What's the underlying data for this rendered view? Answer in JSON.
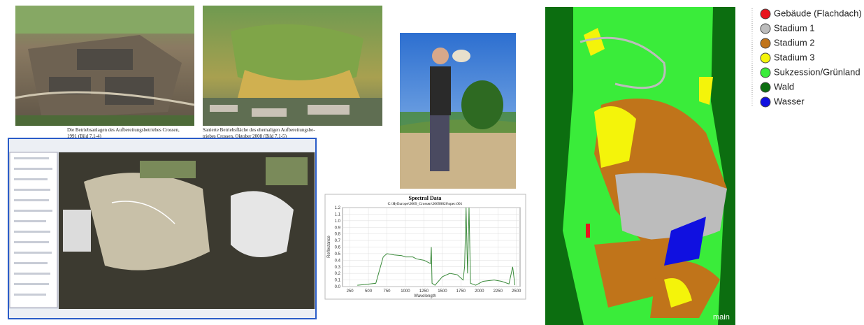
{
  "captions": [
    [
      "Die Betriebsanlagen des Aufbereitungsbetriebes Crossen,",
      "1991 (Bild 7.1-4)"
    ],
    [
      "Sanierte Betriebsfläche des ehemaligen Aufbereitungsbe-",
      "triebes Crossen, Oktober 2008 (Bild 7.1-5)"
    ]
  ],
  "chart_data": {
    "type": "line",
    "title": "Spectral Data",
    "subtitle": "C:\\HyEurope\\2009_Crossen\\20090820\\spec.001",
    "x_label": "Wavelength",
    "y_label": "Reflectance",
    "color": "#3a8a3a",
    "grid": true,
    "x": [
      350,
      450,
      600,
      700,
      750,
      850,
      950,
      1000,
      1100,
      1150,
      1250,
      1340,
      1350,
      1360,
      1400,
      1500,
      1600,
      1700,
      1780,
      1800,
      1820,
      1840,
      1860,
      1880,
      1950,
      2050,
      2200,
      2300,
      2400,
      2450,
      2480
    ],
    "values": [
      0.02,
      0.03,
      0.05,
      0.45,
      0.5,
      0.48,
      0.47,
      0.45,
      0.45,
      0.42,
      0.4,
      0.35,
      0.6,
      0.05,
      0.02,
      0.15,
      0.2,
      0.18,
      0.1,
      0.3,
      1.2,
      0.2,
      1.2,
      0.05,
      0.02,
      0.08,
      0.1,
      0.08,
      0.04,
      0.3,
      0.02
    ],
    "xlim": [
      150,
      2550
    ],
    "ylim": [
      0,
      1.2
    ],
    "xticks": [
      250,
      500,
      750,
      1000,
      1250,
      1500,
      1750,
      2000,
      2250,
      2500
    ],
    "yticks": [
      {
        "value": 0,
        "label": "0.0"
      },
      0.1,
      0.2,
      0.3,
      0.4,
      0.5,
      0.6,
      0.7,
      0.8,
      0.9,
      {
        "value": 1,
        "label": "1.0"
      },
      1.1,
      1.2
    ]
  },
  "legend": [
    {
      "label": "Gebäude (Flachdach)",
      "color": "#e8141e"
    },
    {
      "label": "Stadium 1",
      "color": "#bcbcbc"
    },
    {
      "label": "Stadium 2",
      "color": "#c0741a"
    },
    {
      "label": "Stadium 3",
      "color": "#f4f40a"
    },
    {
      "label": "Sukzession/Grünland",
      "color": "#3aec3a"
    },
    {
      "label": "Wald",
      "color": "#0c6e10"
    },
    {
      "label": "Wasser",
      "color": "#1010e0"
    }
  ],
  "map_label": "main"
}
